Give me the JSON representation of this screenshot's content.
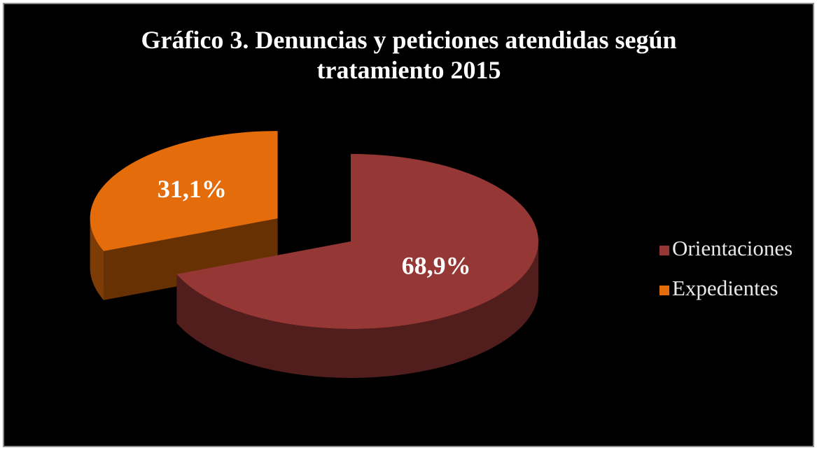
{
  "chart_data": {
    "type": "pie",
    "title": "Gráfico 3. Denuncias y peticiones atendidas según tratamiento 2015",
    "categories": [
      "Orientaciones",
      "Expedientes"
    ],
    "values": [
      68.9,
      31.1
    ],
    "value_labels": [
      "68,9%",
      "31,1%"
    ],
    "colors": [
      "#953735",
      "#e46c0a"
    ],
    "explode": [
      0,
      0.47
    ],
    "legend": "right"
  }
}
